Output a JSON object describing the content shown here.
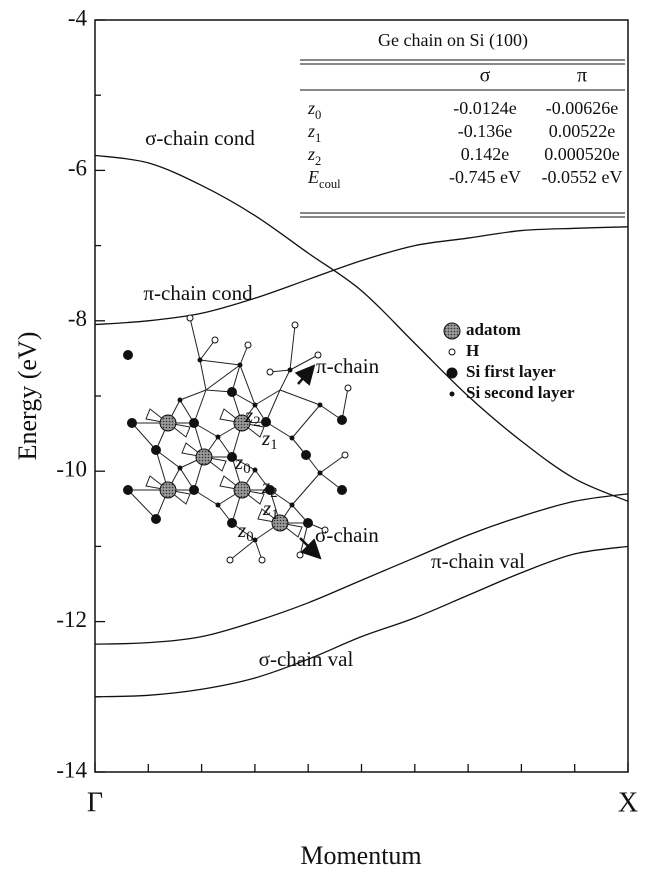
{
  "chart_data": {
    "type": "line",
    "xlabel": "Momentum",
    "ylabel": "Energy (eV)",
    "x": [
      0,
      0.1,
      0.2,
      0.3,
      0.4,
      0.5,
      0.6,
      0.7,
      0.8,
      0.9,
      1
    ],
    "xlim": [
      0,
      1
    ],
    "ylim": [
      -14,
      -4
    ],
    "xticks": [
      {
        "value": 0,
        "label": "Γ"
      },
      {
        "value": 1,
        "label": "X"
      }
    ],
    "xminorticks": [
      0.1,
      0.2,
      0.3,
      0.4,
      0.5,
      0.6,
      0.7,
      0.8,
      0.9
    ],
    "yticks": [
      -14,
      -12,
      -10,
      -8,
      -6,
      -4
    ],
    "yminorticks": [
      -13,
      -11,
      -9,
      -7,
      -5
    ],
    "series": [
      {
        "name": "σ-chain cond",
        "color": "#111111",
        "values": [
          -5.8,
          -5.9,
          -6.2,
          -6.6,
          -7.1,
          -7.6,
          -8.3,
          -9.0,
          -9.6,
          -10.1,
          -10.4
        ]
      },
      {
        "name": "π-chain cond",
        "color": "#111111",
        "values": [
          -8.05,
          -8.0,
          -7.9,
          -7.7,
          -7.45,
          -7.2,
          -7.0,
          -6.9,
          -6.8,
          -6.77,
          -6.75
        ]
      },
      {
        "name": "π-chain val",
        "color": "#111111",
        "values": [
          -12.3,
          -12.28,
          -12.2,
          -12.0,
          -11.75,
          -11.45,
          -11.15,
          -10.85,
          -10.6,
          -10.4,
          -10.3
        ]
      },
      {
        "name": "σ-chain val",
        "color": "#111111",
        "values": [
          -13.0,
          -12.98,
          -12.9,
          -12.75,
          -12.5,
          -12.2,
          -11.95,
          -11.65,
          -11.35,
          -11.1,
          -11.0
        ]
      }
    ],
    "inset_table": {
      "title": "Ge chain on Si (100)",
      "columns": [
        "σ",
        "π"
      ],
      "rows": [
        {
          "label": {
            "symbol": "z",
            "sub": "0"
          },
          "cells": [
            "-0.0124e",
            "-0.00626e"
          ]
        },
        {
          "label": {
            "symbol": "z",
            "sub": "1"
          },
          "cells": [
            "-0.136e",
            "0.00522e"
          ]
        },
        {
          "label": {
            "symbol": "z",
            "sub": "2"
          },
          "cells": [
            "0.142e",
            "0.000520e"
          ]
        },
        {
          "label": {
            "symbol": "E",
            "sub": "coul"
          },
          "cells": [
            "-0.745 eV",
            "-0.0552 eV"
          ]
        }
      ]
    },
    "inset_structure": {
      "legend": [
        "adatom",
        "H",
        "Si first layer",
        "Si second layer"
      ],
      "arrows": [
        "π-chain",
        "σ-chain"
      ],
      "bond_labels": [
        {
          "symbol": "z",
          "sub": "2"
        },
        {
          "symbol": "z",
          "sub": "1"
        },
        {
          "symbol": "z",
          "sub": "0"
        },
        {
          "symbol": "z",
          "sub": "2"
        },
        {
          "symbol": "z",
          "sub": "1"
        },
        {
          "symbol": "z",
          "sub": "0"
        }
      ]
    }
  }
}
